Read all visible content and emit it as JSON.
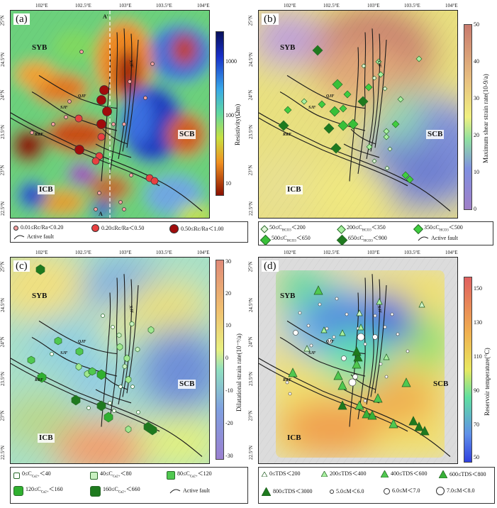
{
  "axes": {
    "lon_ticks": [
      "102°E",
      "102.5°E",
      "103°E",
      "103.5°E",
      "104°E"
    ],
    "lat_ticks": [
      "25°N",
      "24.5°N",
      "24°N",
      "23.5°N",
      "23°N",
      "22.5°N"
    ]
  },
  "blocks": {
    "syb": "SYB",
    "scb": "SCB",
    "icb": "ICB"
  },
  "faults": {
    "qjf": "QJF",
    "sjf": "SJF",
    "rrf": "RRF",
    "xjf": "XJF"
  },
  "panel_a": {
    "label": "(a)",
    "profile_top": "A'",
    "profile_bottom": "A",
    "colorbar": {
      "title": "Resistivity(Ωm)",
      "ticks": [
        "1000",
        "100",
        "10"
      ]
    },
    "legend": {
      "item1": "0.01≤Rc/Ra＜0.20",
      "item2": "0.20≤Rc/Ra＜0.50",
      "item3": "0.50≤Rc/Ra＜1.00",
      "item4": "Active fault"
    }
  },
  "panel_b": {
    "label": "(b)",
    "colorbar": {
      "title": "Maximum shear strain rate(10-9/a)",
      "ticks": [
        "50",
        "40",
        "30",
        "20",
        "10",
        "0"
      ]
    },
    "legend": {
      "item1": "50≤C",
      "item1_sub": "HCO3",
      "item1_tail": "＜200",
      "item2": "200≤C",
      "item2_sub": "HCO3",
      "item2_tail": "＜350",
      "item3": "350≤C",
      "item3_sub": "HCO3",
      "item3_tail": "＜500",
      "item4": "500≤C",
      "item4_sub": "HCO3",
      "item4_tail": "＜650",
      "item5": "650≤C",
      "item5_sub": "HCO3",
      "item5_tail": "＜900",
      "item6": "Active fault"
    }
  },
  "panel_c": {
    "label": "(c)",
    "colorbar": {
      "title": "Dilatational strain rate(10⁻⁹/a)",
      "ticks": [
        "30",
        "20",
        "10",
        "0",
        "-10",
        "-20",
        "-30"
      ]
    },
    "legend": {
      "item1": "0≤C",
      "item1_sub": "Ca2+",
      "item1_tail": "＜40",
      "item2": "40≤C",
      "item2_sub": "Ca2+",
      "item2_tail": "＜80",
      "item3": "80≤C",
      "item3_sub": "Ca2+",
      "item3_tail": "＜120",
      "item4": "120≤C",
      "item4_sub": "Ca2+",
      "item4_tail": "＜160",
      "item5": "160≤C",
      "item5_sub": "Ca2+",
      "item5_tail": "＜660",
      "item6": "Active fault"
    }
  },
  "panel_d": {
    "label": "(d)",
    "colorbar": {
      "title": "Reservoir temperature(°C)",
      "ticks": [
        "150",
        "130",
        "110",
        "90",
        "70",
        "50"
      ]
    },
    "legend": {
      "item1": "0≤TDS＜200",
      "item2": "200≤TDS＜400",
      "item3": "400≤TDS＜600",
      "item4": "600≤TDS＜800",
      "item5": "800≤TDS＜3000",
      "item6": "5.0≤M＜6.0",
      "item7": "6.0≤M＜7.0",
      "item8": "7.0≤M＜8.0"
    }
  },
  "colors": {
    "fault_line": "#222222",
    "marker_green": "#3fce3f",
    "marker_green_light": "#a8f0a0",
    "marker_green_dark": "#1e7a1e",
    "marker_red": "#e03a3a",
    "marker_red_dark": "#9b1010",
    "marker_pink": "#f5a0a0"
  }
}
